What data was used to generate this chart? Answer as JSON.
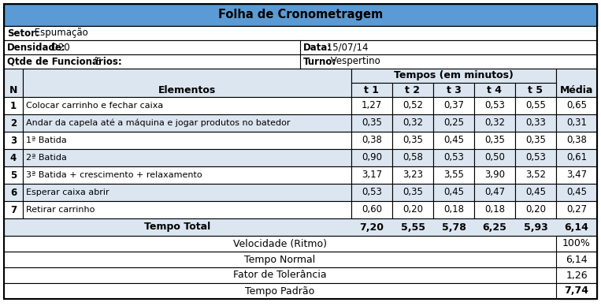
{
  "title": "Folha de Cronometragem",
  "header_bg": "#5b9bd5",
  "info_left": [
    "Setor: Espumação",
    "Densidade: D20",
    "Qtde de Funcionários: 5"
  ],
  "info_left_bold": [
    "Setor:",
    "Densidade:",
    "Qtde de Funcionários:"
  ],
  "info_right": [
    "",
    "Data: 15/07/14",
    "Turno: Vespertino"
  ],
  "info_right_bold": [
    "",
    "Data:",
    "Turno:"
  ],
  "tempo_header": "Tempos (em minutos)",
  "col_headers_t": [
    "t 1",
    "t 2",
    "t 3",
    "t 4",
    "t 5"
  ],
  "rows": [
    [
      "1",
      "Colocar carrinho e fechar caixa",
      "1,27",
      "0,52",
      "0,37",
      "0,53",
      "0,55",
      "0,65"
    ],
    [
      "2",
      "Andar da capela até a máquina e jogar produtos no batedor",
      "0,35",
      "0,32",
      "0,25",
      "0,32",
      "0,33",
      "0,31"
    ],
    [
      "3",
      "1ª Batida",
      "0,38",
      "0,35",
      "0,45",
      "0,35",
      "0,35",
      "0,38"
    ],
    [
      "4",
      "2ª Batida",
      "0,90",
      "0,58",
      "0,53",
      "0,50",
      "0,53",
      "0,61"
    ],
    [
      "5",
      "3ª Batida + crescimento + relaxamento",
      "3,17",
      "3,23",
      "3,55",
      "3,90",
      "3,52",
      "3,47"
    ],
    [
      "6",
      "Esperar caixa abrir",
      "0,53",
      "0,35",
      "0,45",
      "0,47",
      "0,45",
      "0,45"
    ],
    [
      "7",
      "Retirar carrinho",
      "0,60",
      "0,20",
      "0,18",
      "0,18",
      "0,20",
      "0,27"
    ]
  ],
  "total_row": [
    "Tempo Total",
    "7,20",
    "5,55",
    "5,78",
    "6,25",
    "5,93",
    "6,14"
  ],
  "bottom_rows": [
    [
      "Velocidade (Ritmo)",
      "100%",
      false
    ],
    [
      "Tempo Normal",
      "6,14",
      false
    ],
    [
      "Fator de Tolerância",
      "1,26",
      false
    ],
    [
      "Tempo Padrão",
      "7,74",
      true
    ]
  ],
  "row_bg_white": "#ffffff",
  "row_bg_blue": "#dce6f1",
  "border_color": "#000000"
}
